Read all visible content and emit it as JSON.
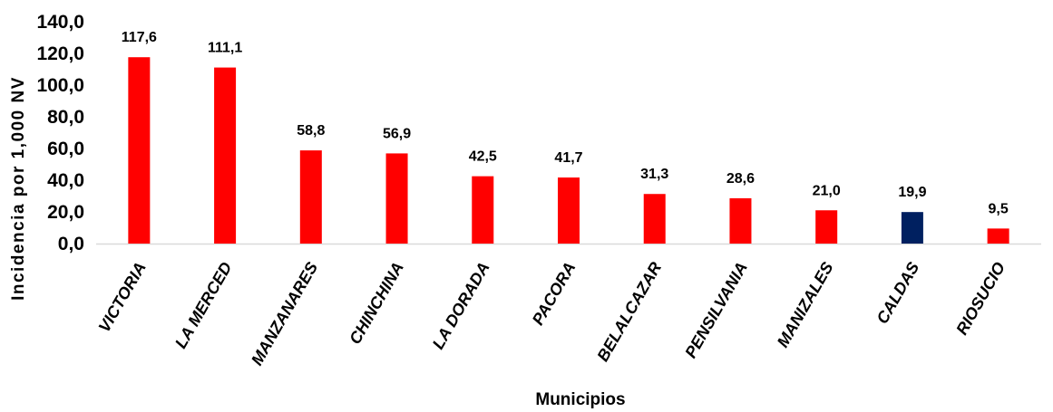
{
  "chart_data": {
    "type": "bar",
    "categories": [
      "VICTORIA",
      "LA MERCED",
      "MANZANARES",
      "CHINCHINA",
      "LA DORADA",
      "PACORA",
      "BELALCAZAR",
      "PENSILVANIA",
      "MANIZALES",
      "CALDAS",
      "RIOSUCIO"
    ],
    "values": [
      117.6,
      111.1,
      58.8,
      56.9,
      42.5,
      41.7,
      31.3,
      28.6,
      21.0,
      19.9,
      9.5
    ],
    "value_labels": [
      "117,6",
      "111,1",
      "58,8",
      "56,9",
      "42,5",
      "41,7",
      "31,3",
      "28,6",
      "21,0",
      "19,9",
      "9,5"
    ],
    "highlight_index": 9,
    "colors": {
      "bar": "#ff0000",
      "highlight": "#002060",
      "axis_line": "#d9d9d9"
    },
    "title": "",
    "xlabel": "Municipios",
    "ylabel": "Incidencia por 1,000 NV",
    "ylim": [
      0,
      140
    ],
    "yticks": [
      0,
      20,
      40,
      60,
      80,
      100,
      120,
      140
    ],
    "ytick_labels": [
      "0,0",
      "20,0",
      "40,0",
      "60,0",
      "80,0",
      "100,0",
      "120,0",
      "140,0"
    ],
    "grid": false,
    "legend": "none"
  }
}
